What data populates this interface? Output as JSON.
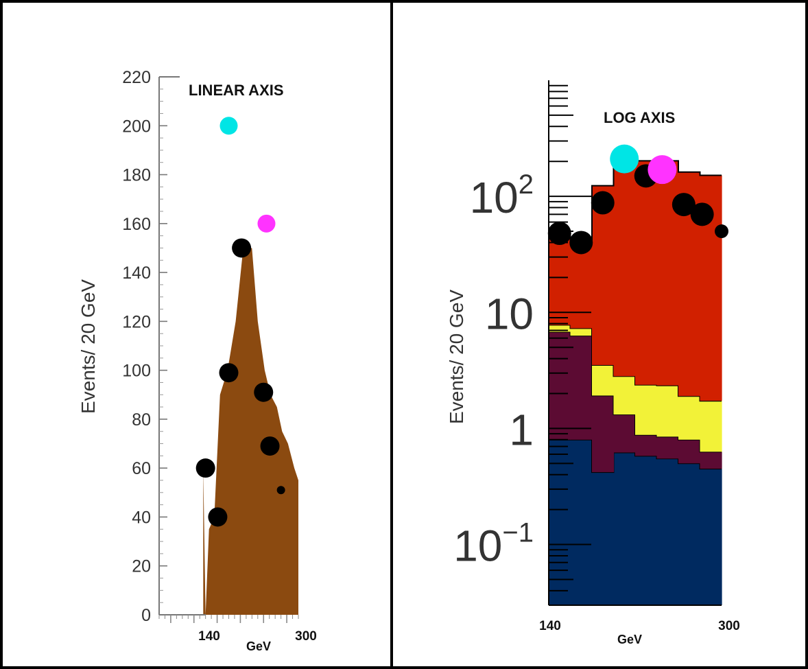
{
  "chart_data": [
    {
      "type": "area",
      "title": "LINEAR AXIS",
      "xlabel": "GeV",
      "ylabel": "Events/ 20 GeV",
      "x_ticklabels": [
        "140",
        "300"
      ],
      "y_ticks": [
        0,
        20,
        40,
        60,
        80,
        100,
        120,
        140,
        160,
        180,
        200,
        220
      ],
      "ylim": [
        0,
        220
      ],
      "xlim": [
        60,
        300
      ],
      "grid": false,
      "colors": {
        "fill": "#8b4a10",
        "points": "#000000",
        "cyan": "#00e5e5",
        "magenta": "#ff33ff"
      },
      "area": {
        "x": [
          136,
          140,
          146,
          155,
          165,
          178,
          192,
          205,
          220,
          230,
          242,
          252,
          263,
          272,
          282,
          293,
          300
        ],
        "y": [
          60,
          0,
          35,
          40,
          90,
          100,
          120,
          150,
          150,
          120,
          100,
          90,
          85,
          75,
          70,
          60,
          55
        ]
      },
      "series": [
        {
          "x": [
            140,
            161,
            180,
            202,
            240,
            251,
            270
          ],
          "y": [
            60,
            40,
            99,
            150,
            91,
            69,
            51
          ]
        }
      ],
      "markers": [
        {
          "x": 180,
          "y": 200,
          "color": "#00e5e5"
        },
        {
          "x": 245,
          "y": 160,
          "color": "#ff33ff"
        }
      ]
    },
    {
      "type": "bar",
      "title": "LOG AXIS",
      "xlabel": "GeV",
      "ylabel": "Events/ 20 GeV",
      "x_ticklabels": [
        "140",
        "300"
      ],
      "y_ticklabels": [
        "10^-1",
        "1",
        "10",
        "10^2"
      ],
      "y_ticks": [
        0.1,
        1,
        10,
        100
      ],
      "yscale": "log",
      "ylim": [
        0.03,
        1000
      ],
      "xlim": [
        140,
        300
      ],
      "grid": false,
      "bin_edges": [
        140,
        160,
        180,
        200,
        220,
        240,
        260,
        280,
        300
      ],
      "stack": [
        {
          "color": "#002a60",
          "values": [
            0.8,
            0.8,
            0.42,
            0.62,
            0.58,
            0.55,
            0.5,
            0.45
          ]
        },
        {
          "color": "#5c0b33",
          "values": [
            6.0,
            5.5,
            1.5,
            0.7,
            0.3,
            0.3,
            0.3,
            0.18
          ]
        },
        {
          "color": "#f2f238",
          "values": [
            1.0,
            1.0,
            1.6,
            1.5,
            1.5,
            1.5,
            1.1,
            1.1
          ]
        },
        {
          "color": "#d12000",
          "values": [
            40,
            35,
            120,
            200,
            200,
            200,
            160,
            150
          ]
        }
      ],
      "series": [
        {
          "x": [
            150,
            170,
            190,
            230,
            265,
            282,
            300
          ],
          "y": [
            48,
            40,
            88,
            150,
            85,
            70,
            50
          ]
        }
      ],
      "markers": [
        {
          "x": 210,
          "y": 210,
          "color": "#00e5e5"
        },
        {
          "x": 245,
          "y": 170,
          "color": "#ff33ff"
        }
      ]
    }
  ]
}
